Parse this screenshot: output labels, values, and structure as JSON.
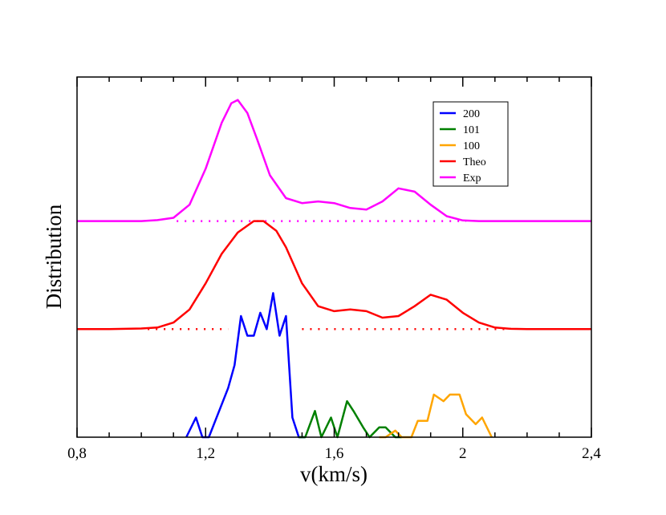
{
  "chart_data": {
    "type": "line",
    "title": "",
    "xlabel": "v(km/s)",
    "ylabel": "Distribution",
    "xlim": [
      0.8,
      2.4
    ],
    "ylim": [
      0,
      11
    ],
    "grid": false,
    "legend_position": "top-right",
    "x_ticks": [
      {
        "value": 0.8,
        "label": "0,8"
      },
      {
        "value": 1.2,
        "label": "1,2"
      },
      {
        "value": 1.6,
        "label": "1,6"
      },
      {
        "value": 2.0,
        "label": "2"
      },
      {
        "value": 2.4,
        "label": "2,4"
      }
    ],
    "series": [
      {
        "name": "200",
        "color": "#0000ff",
        "x": [
          1.14,
          1.17,
          1.19,
          1.21,
          1.23,
          1.25,
          1.27,
          1.29,
          1.31,
          1.33,
          1.35,
          1.37,
          1.39,
          1.41,
          1.43,
          1.45,
          1.47,
          1.49,
          1.51
        ],
        "y": [
          0,
          0.6,
          0,
          0,
          0.5,
          1.0,
          1.5,
          2.2,
          3.7,
          3.1,
          3.1,
          3.8,
          3.3,
          4.4,
          3.1,
          3.7,
          0.6,
          0,
          0
        ]
      },
      {
        "name": "101",
        "color": "#008000",
        "x": [
          1.49,
          1.51,
          1.54,
          1.56,
          1.59,
          1.61,
          1.64,
          1.66,
          1.69,
          1.71,
          1.74,
          1.76,
          1.79,
          1.81
        ],
        "y": [
          0,
          0,
          0.8,
          0,
          0.6,
          0,
          1.1,
          0.8,
          0.3,
          0,
          0.3,
          0.3,
          0,
          0
        ]
      },
      {
        "name": "100",
        "color": "#ffa500",
        "x": [
          1.74,
          1.76,
          1.79,
          1.81,
          1.84,
          1.86,
          1.89,
          1.91,
          1.94,
          1.96,
          1.99,
          2.01,
          2.04,
          2.06,
          2.09
        ],
        "y": [
          0,
          0,
          0.2,
          0,
          0,
          0.5,
          0.5,
          1.3,
          1.1,
          1.3,
          1.3,
          0.7,
          0.4,
          0.6,
          0
        ]
      },
      {
        "name": "Theo",
        "color": "#ff0000",
        "offset": 3.3,
        "x": [
          0.8,
          0.9,
          1.0,
          1.05,
          1.1,
          1.15,
          1.2,
          1.25,
          1.3,
          1.35,
          1.38,
          1.42,
          1.45,
          1.5,
          1.55,
          1.6,
          1.65,
          1.7,
          1.75,
          1.8,
          1.85,
          1.9,
          1.95,
          2.0,
          2.05,
          2.1,
          2.15,
          2.2,
          2.3,
          2.4
        ],
        "y": [
          0,
          0,
          0.02,
          0.05,
          0.2,
          0.6,
          1.4,
          2.3,
          2.95,
          3.3,
          3.3,
          3.0,
          2.5,
          1.4,
          0.7,
          0.55,
          0.6,
          0.55,
          0.35,
          0.4,
          0.7,
          1.05,
          0.9,
          0.5,
          0.2,
          0.05,
          0.01,
          0,
          0,
          0
        ]
      },
      {
        "name": "Exp",
        "color": "#ff00ff",
        "offset": 6.6,
        "x": [
          0.8,
          0.9,
          1.0,
          1.05,
          1.1,
          1.15,
          1.2,
          1.25,
          1.28,
          1.3,
          1.33,
          1.36,
          1.4,
          1.45,
          1.5,
          1.55,
          1.6,
          1.65,
          1.7,
          1.75,
          1.8,
          1.85,
          1.9,
          1.95,
          2.0,
          2.05,
          2.1,
          2.2,
          2.3,
          2.4
        ],
        "y": [
          0,
          0,
          0,
          0.03,
          0.1,
          0.5,
          1.6,
          3.0,
          3.6,
          3.7,
          3.3,
          2.5,
          1.4,
          0.7,
          0.55,
          0.6,
          0.55,
          0.4,
          0.35,
          0.6,
          1.0,
          0.9,
          0.5,
          0.15,
          0.02,
          0,
          0,
          0,
          0,
          0
        ]
      }
    ],
    "dotted_baselines": [
      {
        "series": "Theo",
        "level": 3.3,
        "segments": [
          [
            1.02,
            1.27
          ],
          [
            1.5,
            2.14
          ]
        ]
      },
      {
        "series": "Exp",
        "level": 6.6,
        "segments": [
          [
            1.11,
            2.01
          ]
        ]
      }
    ]
  }
}
